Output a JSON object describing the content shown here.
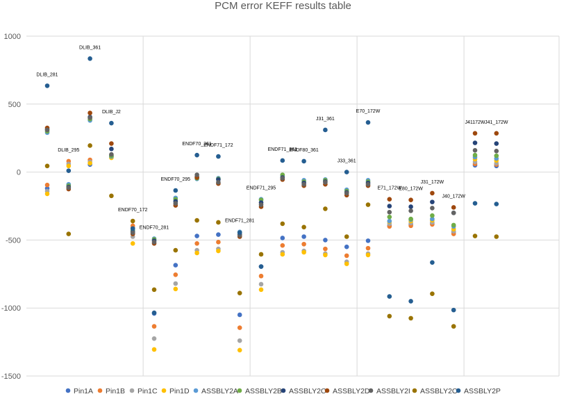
{
  "chart_data": {
    "type": "scatter",
    "title": "PCM error KEFF results table",
    "xlabel": "",
    "ylabel": "",
    "ylim": [
      -1500,
      1000
    ],
    "yticks": [
      1000,
      500,
      0,
      -500,
      -1000,
      -1500
    ],
    "grid": true,
    "legend_position": "bottom",
    "colors": {
      "Pin1A": "#4472c4",
      "Pin1B": "#ed7d31",
      "Pin1C": "#a5a5a5",
      "Pin1D": "#ffc000",
      "ASSBLY2A": "#5b9bd5",
      "ASSBLY2B": "#70ad47",
      "ASSBLY2C": "#264478",
      "ASSBLY2D": "#9e480e",
      "ASSBLY2I": "#636363",
      "ASSBLY2O": "#997300",
      "ASSBLY2P": "#255e91"
    },
    "categories": [
      "DLIB_281",
      "DLIB_295",
      "DLIB_361",
      "DLIB_J2",
      "ENDF70_172",
      "ENDF70_281",
      "ENDF70_295",
      "ENDF70_361",
      "ENDF71_172",
      "ENDF71_281",
      "ENDF71_295",
      "ENDF71_361",
      "ENDF80_361",
      "J31_361",
      "J33_361",
      "E70_172W",
      "E71_172W",
      "E80_172W",
      "J31_172W",
      "J40_172W",
      "J41172W",
      "J41_172W"
    ],
    "series": [
      {
        "name": "Pin1A",
        "values": [
          -120,
          -95,
          55,
          110,
          -410,
          -1040,
          -685,
          -470,
          -460,
          -1050,
          -695,
          -485,
          -475,
          -500,
          -550,
          -505,
          -395,
          -385,
          -375,
          -440,
          50,
          45
        ]
      },
      {
        "name": "Pin1B",
        "values": [
          -95,
          80,
          90,
          120,
          -395,
          -1135,
          -755,
          -525,
          -515,
          -1145,
          -765,
          -540,
          -530,
          -565,
          -615,
          -560,
          -400,
          -395,
          -385,
          -455,
          60,
          55
        ]
      },
      {
        "name": "Pin1C",
        "values": [
          -140,
          60,
          75,
          115,
          -475,
          -1225,
          -820,
          -575,
          -565,
          -1240,
          -825,
          -590,
          -580,
          -600,
          -660,
          -600,
          -380,
          -375,
          -370,
          -435,
          75,
          65
        ]
      },
      {
        "name": "Pin1D",
        "values": [
          -160,
          45,
          65,
          105,
          -525,
          -1305,
          -860,
          -595,
          -580,
          -1310,
          -865,
          -605,
          -590,
          -610,
          -675,
          -610,
          -365,
          -360,
          -355,
          -420,
          95,
          85
        ]
      },
      {
        "name": "ASSBLY2A",
        "values": [
          290,
          -90,
          380,
          115,
          -420,
          -490,
          -190,
          -50,
          -45,
          -440,
          -200,
          -25,
          -60,
          -55,
          -130,
          -60,
          -360,
          -350,
          -345,
          -400,
          110,
          100
        ]
      },
      {
        "name": "ASSBLY2B",
        "values": [
          300,
          -100,
          390,
          120,
          -430,
          -495,
          -200,
          -45,
          -50,
          -445,
          -205,
          -20,
          -70,
          -60,
          -140,
          -70,
          -330,
          -345,
          -320,
          -390,
          125,
          120
        ]
      },
      {
        "name": "ASSBLY2C",
        "values": [
          315,
          -110,
          405,
          170,
          -440,
          -505,
          -215,
          -35,
          -55,
          -460,
          -225,
          -40,
          -80,
          -70,
          -150,
          -80,
          -250,
          -255,
          -220,
          -300,
          215,
          210
        ]
      },
      {
        "name": "ASSBLY2D",
        "values": [
          325,
          -125,
          435,
          210,
          -455,
          -525,
          -245,
          -40,
          -85,
          -475,
          -255,
          -55,
          -100,
          -90,
          -170,
          -100,
          -200,
          -205,
          -155,
          -260,
          285,
          285
        ]
      },
      {
        "name": "ASSBLY2I",
        "values": [
          310,
          -115,
          400,
          130,
          -445,
          -515,
          -230,
          -20,
          -75,
          -465,
          -240,
          -45,
          -90,
          -75,
          -155,
          -90,
          -295,
          -285,
          -265,
          -300,
          160,
          155
        ]
      },
      {
        "name": "ASSBLY2O",
        "values": [
          45,
          -455,
          195,
          -175,
          -360,
          -865,
          -575,
          -355,
          -370,
          -890,
          -605,
          -380,
          -405,
          -270,
          -475,
          -240,
          -1060,
          -1075,
          -895,
          -1135,
          -470,
          -475
        ]
      },
      {
        "name": "ASSBLY2P",
        "values": [
          635,
          10,
          835,
          360,
          -415,
          -1035,
          -135,
          125,
          115,
          -445,
          -695,
          85,
          80,
          310,
          0,
          365,
          -915,
          -950,
          -665,
          -1015,
          -230,
          -235
        ]
      }
    ]
  }
}
